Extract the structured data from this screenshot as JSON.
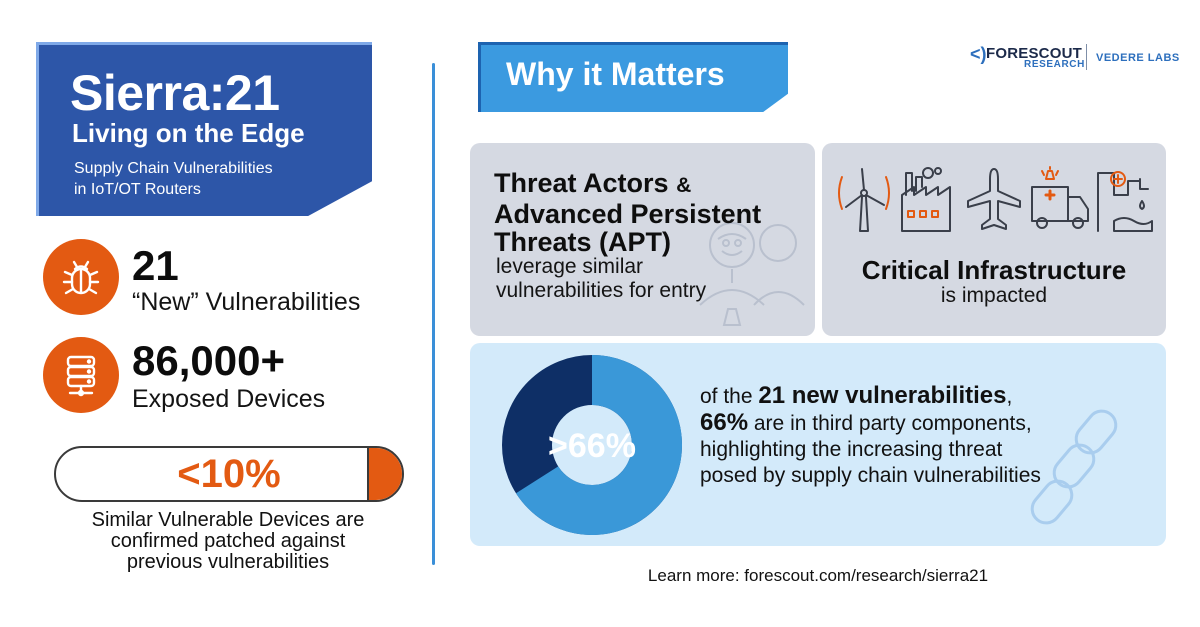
{
  "title_block": {
    "title": "Sierra:21",
    "subtitle": "Living on the Edge",
    "description_line1": "Supply Chain Vulnerabilities",
    "description_line2": "in IoT/OT Routers"
  },
  "stats": [
    {
      "icon": "bug-icon",
      "value": "21",
      "label": "“New” Vulnerabilities"
    },
    {
      "icon": "database-icon",
      "value": "86,000+",
      "label": "Exposed Devices"
    }
  ],
  "patch_bar": {
    "value_text": "<10%",
    "fill_fraction": 0.1,
    "caption_line1": "Similar Vulnerable Devices are",
    "caption_line2": "confirmed patched against",
    "caption_line3": "previous vulnerabilities"
  },
  "section_title": "Why it Matters",
  "logo": {
    "brand": "FORESCOUT",
    "research": "RESEARCH",
    "lab": "VEDERE LABS"
  },
  "threat_card": {
    "title_part1": "Threat Actors",
    "title_amp": "&",
    "title_part2": "Advanced Persistent",
    "title_part3": "Threats (APT)",
    "desc_line1": "leverage similar",
    "desc_line2": "vulnerabilities for entry"
  },
  "infra_card": {
    "icons": [
      "wind-turbine-icon",
      "factory-icon",
      "airplane-icon",
      "ambulance-icon",
      "water-treatment-icon"
    ],
    "title": "Critical Infrastructure",
    "subtitle": "is impacted"
  },
  "third_party": {
    "donut_label": ">66%",
    "donut_fraction": 0.66,
    "line1_pre": "of the ",
    "line1_bold": "21 new vulnerabilities",
    "line1_post": ",",
    "line2_bold": "66%",
    "line2_post": " are in third party components,",
    "line3": "highlighting the increasing threat",
    "line4": "posed by supply chain vulnerabilities"
  },
  "learn_more": "Learn more: forescout.com/research/sierra21",
  "colors": {
    "brand_blue": "#2d56a8",
    "accent_blue": "#3b9ae0",
    "accent_orange": "#e35a12",
    "donut_dark": "#0e2f66",
    "donut_light": "#3a98d8"
  }
}
